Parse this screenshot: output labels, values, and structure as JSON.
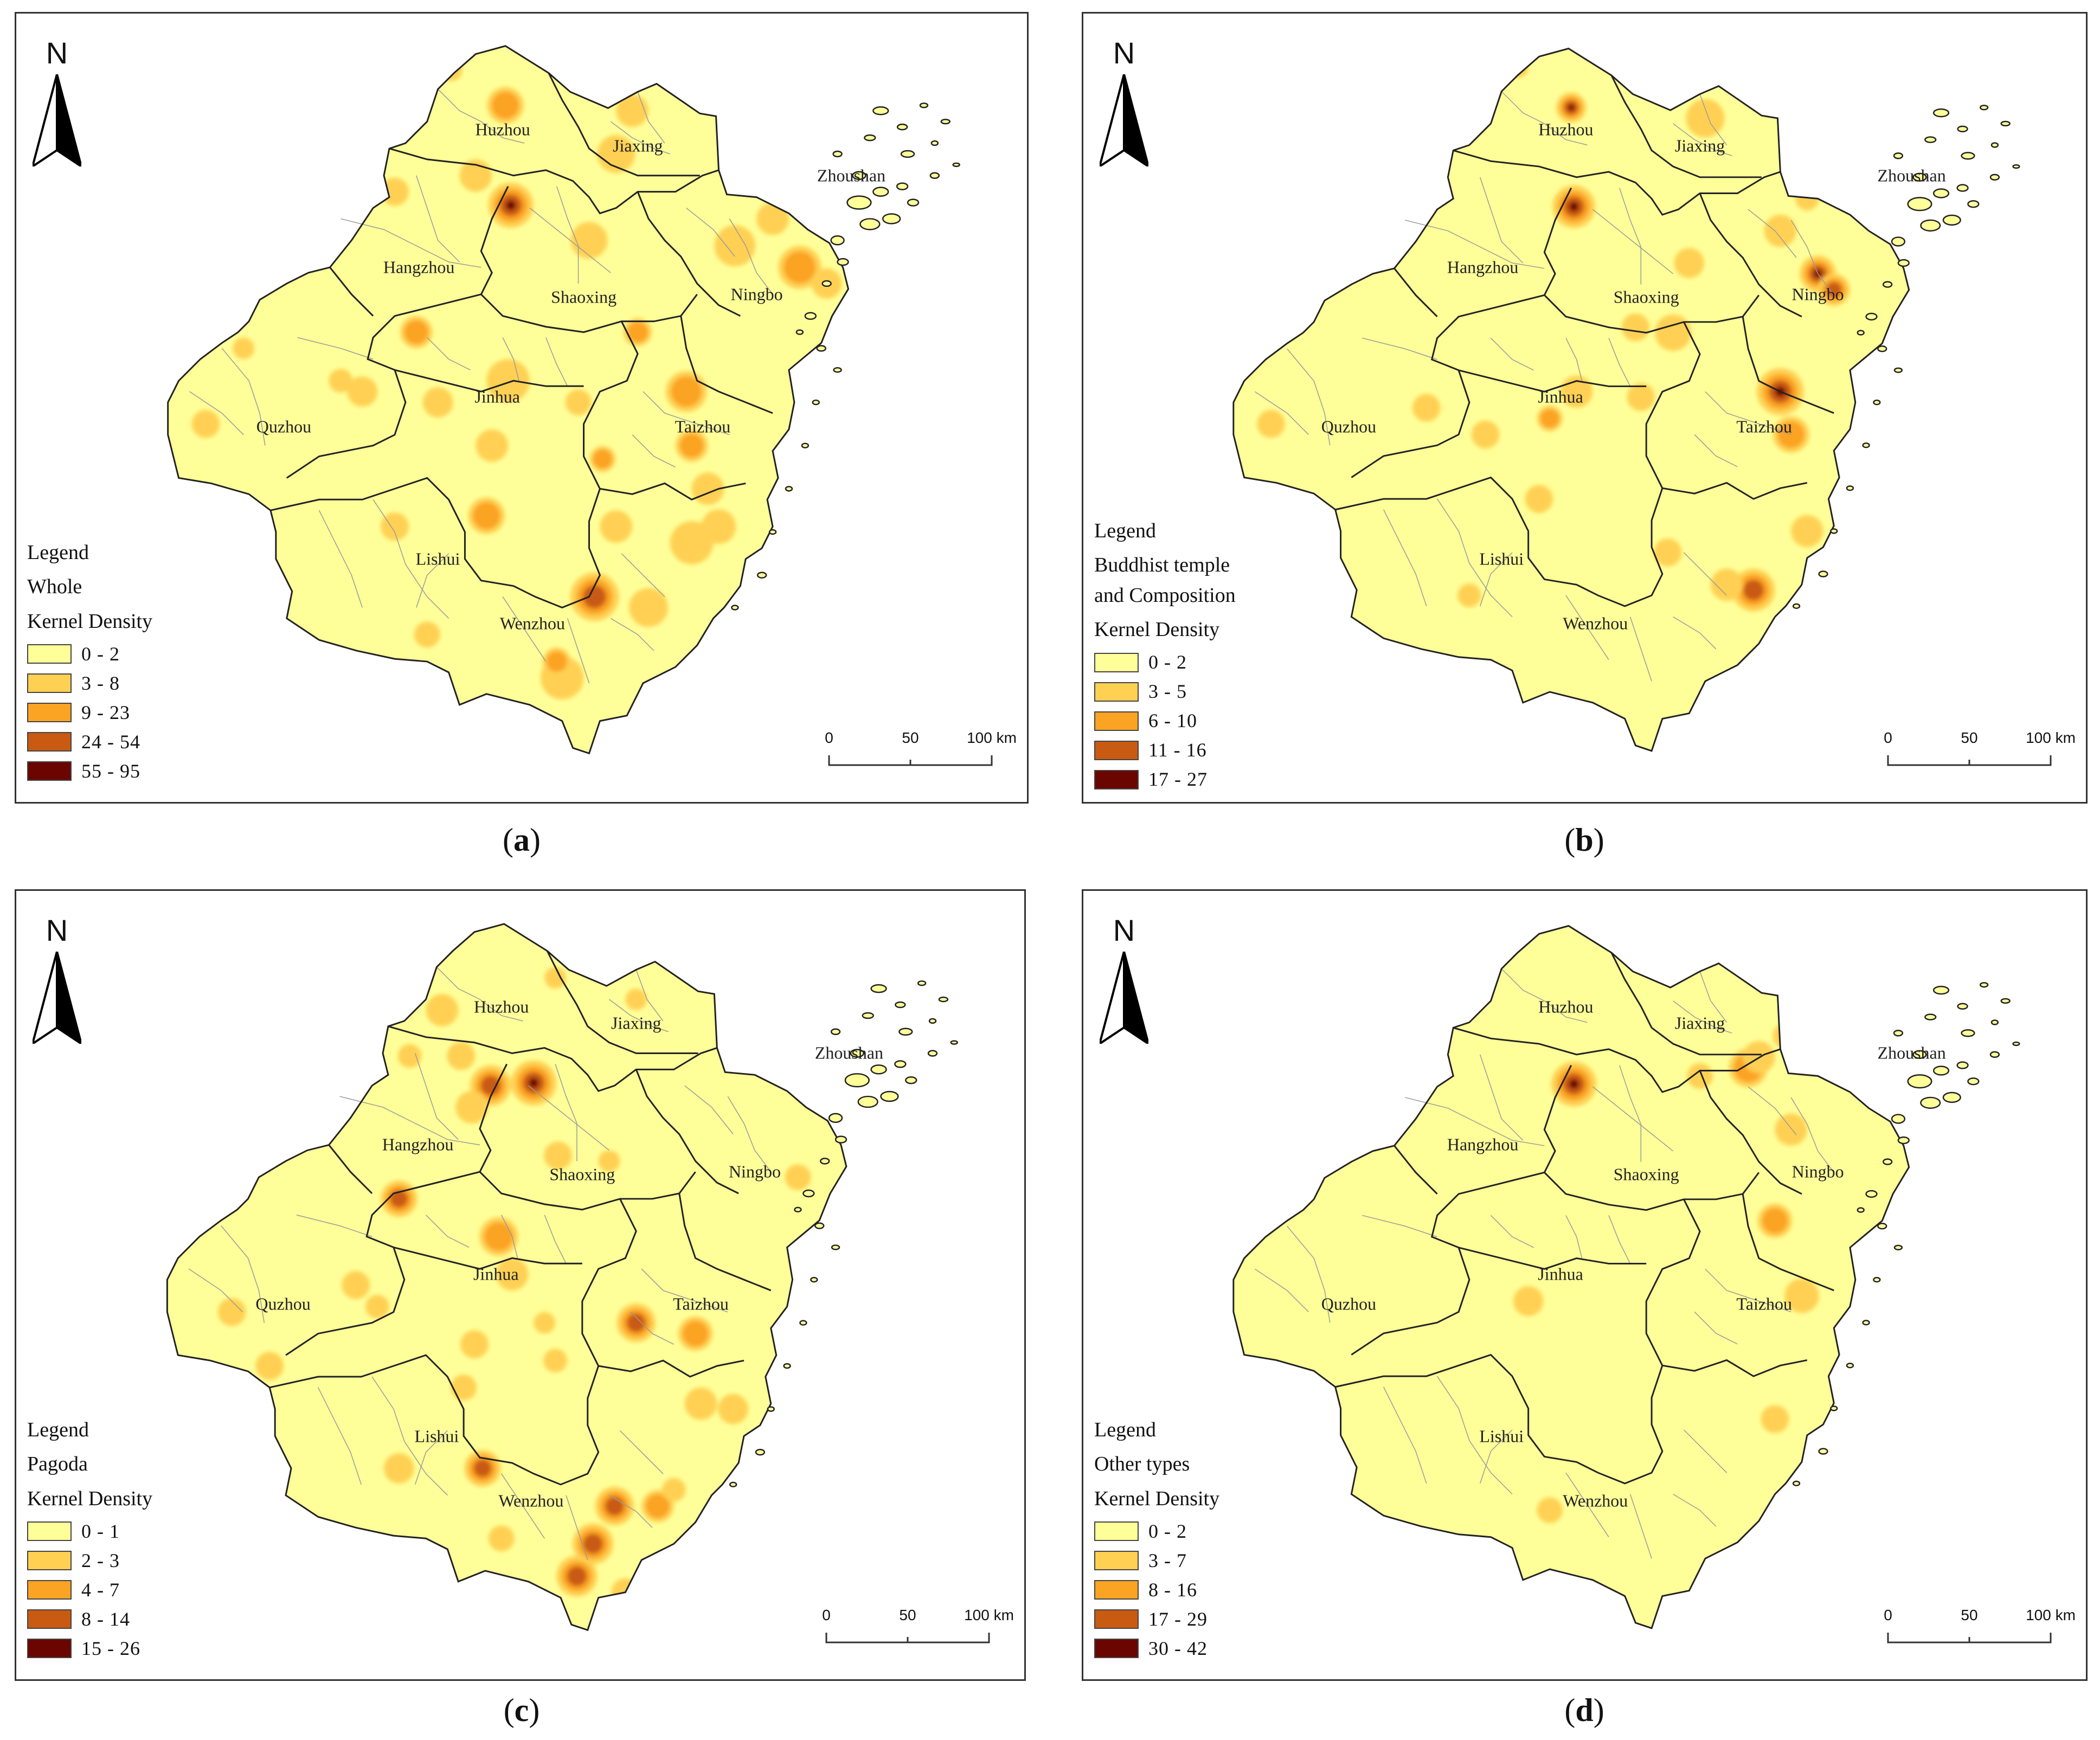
{
  "colors": {
    "class1": "#ffff99",
    "class2": "#ffd052",
    "class3": "#fba323",
    "class4": "#c95a12",
    "class5": "#6b0500",
    "boundary": "#222222",
    "county_line": "#9a9a9a"
  },
  "north_letter": "N",
  "north_icon": "north-arrow-icon",
  "scale": {
    "labels": [
      "0",
      "50",
      "100 km"
    ]
  },
  "panels": [
    {
      "caption_letter": "a",
      "cities": [
        "Huzhou",
        "Jiaxing",
        "Zhoushan",
        "Hangzhou",
        "Shaoxing",
        "Ningbo",
        "Quzhou",
        "Jinhua",
        "Taizhou",
        "Lishui",
        "Wenzhou"
      ],
      "legend": {
        "title": "Legend",
        "layer": [
          "Whole"
        ],
        "kd_label": "Kernel Density",
        "classes": [
          "0 - 2",
          "3 - 8",
          "9 - 23",
          "24 - 54",
          "55 - 95"
        ]
      }
    },
    {
      "caption_letter": "b",
      "cities": [
        "Huzhou",
        "Jiaxing",
        "Zhoushan",
        "Hangzhou",
        "Shaoxing",
        "Ningbo",
        "Quzhou",
        "Jinhua",
        "Taizhou",
        "Lishui",
        "Wenzhou"
      ],
      "legend": {
        "title": "Legend",
        "layer": [
          "Buddhist temple",
          "and Composition"
        ],
        "kd_label": "Kernel Density",
        "classes": [
          "0 - 2",
          "3 - 5",
          "6 - 10",
          "11 - 16",
          "17 - 27"
        ]
      }
    },
    {
      "caption_letter": "c",
      "cities": [
        "Huzhou",
        "Jiaxing",
        "Zhoushan",
        "Hangzhou",
        "Shaoxing",
        "Ningbo",
        "Quzhou",
        "Jinhua",
        "Taizhou",
        "Lishui",
        "Wenzhou"
      ],
      "legend": {
        "title": "Legend",
        "layer": [
          "Pagoda"
        ],
        "kd_label": "Kernel Density",
        "classes": [
          "0 - 1",
          "2 - 3",
          "4 - 7",
          "8 - 14",
          "15 - 26"
        ]
      }
    },
    {
      "caption_letter": "d",
      "cities": [
        "Huzhou",
        "Jiaxing",
        "Zhoushan",
        "Hangzhou",
        "Shaoxing",
        "Ningbo",
        "Quzhou",
        "Jinhua",
        "Taizhou",
        "Lishui",
        "Wenzhou"
      ],
      "legend": {
        "title": "Legend",
        "layer": [
          "Other types"
        ],
        "kd_label": "Kernel Density",
        "classes": [
          "0 - 2",
          "3 - 7",
          "8 - 16",
          "17 - 29",
          "30 - 42"
        ]
      }
    }
  ]
}
